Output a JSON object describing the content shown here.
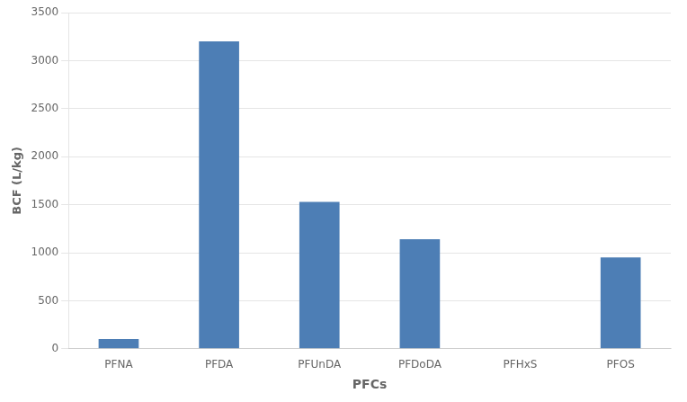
{
  "chart_data": {
    "type": "bar",
    "categories": [
      "PFNA",
      "PFDA",
      "PFUnDA",
      "PFDoDA",
      "PFHxS",
      "PFOS"
    ],
    "values": [
      100,
      3200,
      1530,
      1140,
      0,
      950
    ],
    "color": "#4d7eb5",
    "xlabel": "PFCs",
    "ylabel": "BCF (L/kg)",
    "ylim": [
      0,
      3500
    ],
    "yticks": [
      0,
      500,
      1000,
      1500,
      2000,
      2500,
      3000,
      3500
    ],
    "grid": true
  }
}
